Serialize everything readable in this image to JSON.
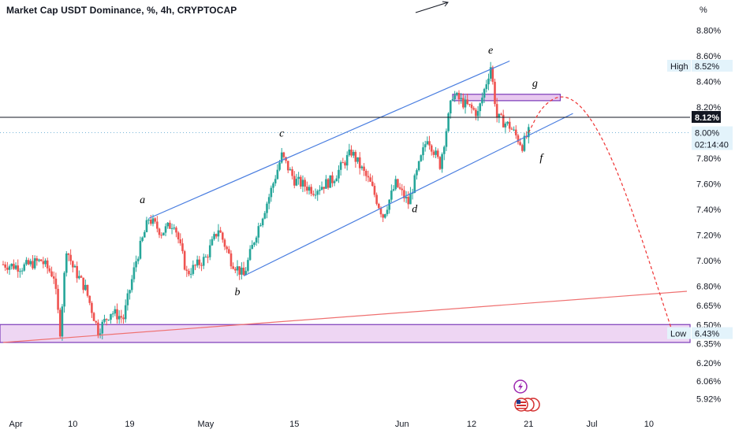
{
  "title": "Market Cap USDT Dominance, %, 4h, CRYPTOCAP",
  "y_unit": "%",
  "colors": {
    "up": "#26a69a",
    "down": "#ef5350",
    "channel": "#4a7ee0",
    "zone_fill": "#e8c8ef",
    "zone_border": "#7b3ab8",
    "forecast": "#ef3333",
    "trend": "#ef7070",
    "current_bg": "#131722",
    "last_bg": "#e3f3fb"
  },
  "chart_data": {
    "type": "candlestick",
    "title": "Market Cap USDT Dominance, %, 4h, CRYPTOCAP",
    "x_ticks": [
      "Apr",
      "10",
      "19",
      "May",
      "15",
      "Jun",
      "12",
      "21",
      "Jul",
      "10"
    ],
    "y_ticks": [
      "8.80%",
      "8.60%",
      "8.40%",
      "8.20%",
      "8.00%",
      "7.80%",
      "7.60%",
      "7.40%",
      "7.20%",
      "7.00%",
      "6.80%",
      "6.65%",
      "6.50%",
      "6.35%",
      "6.20%",
      "6.06%",
      "5.92%"
    ],
    "y_range": [
      5.88,
      8.92
    ],
    "high": {
      "label": "High",
      "value": "8.52%"
    },
    "low": {
      "label": "Low",
      "value": "6.43%"
    },
    "current": {
      "value": "8.12%"
    },
    "last": {
      "value": "8.00%",
      "countdown": "02:14:40"
    },
    "wave_labels": [
      "a",
      "b",
      "c",
      "d",
      "e",
      "f",
      "g"
    ],
    "support_zone": [
      6.36,
      6.5
    ],
    "resistance_zone": [
      8.25,
      8.3
    ],
    "price_path": [
      [
        "2023-03-30",
        6.97
      ],
      [
        "2023-04-02",
        6.95
      ],
      [
        "2023-04-05",
        7.0
      ],
      [
        "2023-04-07",
        6.88
      ],
      [
        "2023-04-08",
        6.45
      ],
      [
        "2023-04-09",
        7.1
      ],
      [
        "2023-04-10",
        6.95
      ],
      [
        "2023-04-12",
        6.78
      ],
      [
        "2023-04-14",
        6.45
      ],
      [
        "2023-04-16",
        6.6
      ],
      [
        "2023-04-18",
        6.55
      ],
      [
        "2023-04-20",
        7.0
      ],
      [
        "2023-04-22",
        7.33
      ],
      [
        "2023-04-24",
        7.22
      ],
      [
        "2023-04-26",
        7.3
      ],
      [
        "2023-04-28",
        6.9
      ],
      [
        "2023-05-01",
        7.02
      ],
      [
        "2023-05-03",
        7.25
      ],
      [
        "2023-05-05",
        7.0
      ],
      [
        "2023-05-07",
        6.88
      ],
      [
        "2023-05-09",
        7.22
      ],
      [
        "2023-05-11",
        7.5
      ],
      [
        "2023-05-13",
        7.82
      ],
      [
        "2023-05-15",
        7.63
      ],
      [
        "2023-05-18",
        7.55
      ],
      [
        "2023-05-21",
        7.63
      ],
      [
        "2023-05-24",
        7.85
      ],
      [
        "2023-05-27",
        7.6
      ],
      [
        "2023-05-29",
        7.35
      ],
      [
        "2023-05-31",
        7.6
      ],
      [
        "2023-06-02",
        7.45
      ],
      [
        "2023-06-05",
        7.97
      ],
      [
        "2023-06-07",
        7.75
      ],
      [
        "2023-06-09",
        8.3
      ],
      [
        "2023-06-11",
        8.22
      ],
      [
        "2023-06-13",
        8.15
      ],
      [
        "2023-06-15",
        8.52
      ],
      [
        "2023-06-16",
        8.12
      ],
      [
        "2023-06-18",
        8.05
      ],
      [
        "2023-06-20",
        7.9
      ],
      [
        "2023-06-21",
        8.0
      ]
    ],
    "forecast_path": [
      [
        "2023-06-21",
        8.0
      ],
      [
        "2023-06-23",
        8.2
      ],
      [
        "2023-06-26",
        8.3
      ],
      [
        "2023-06-29",
        8.23
      ],
      [
        "2023-07-02",
        8.02
      ],
      [
        "2023-07-05",
        7.7
      ],
      [
        "2023-07-08",
        7.3
      ],
      [
        "2023-07-11",
        6.85
      ],
      [
        "2023-07-14",
        6.4
      ]
    ],
    "channel_upper": [
      [
        "2023-04-22",
        7.33
      ],
      [
        "2023-06-18",
        8.56
      ]
    ],
    "channel_lower": [
      [
        "2023-05-07",
        6.88
      ],
      [
        "2023-06-28",
        8.15
      ]
    ],
    "trendline": [
      [
        "2023-03-30",
        6.36
      ],
      [
        "2023-07-16",
        6.76
      ]
    ],
    "horizontal_line": 8.12
  }
}
